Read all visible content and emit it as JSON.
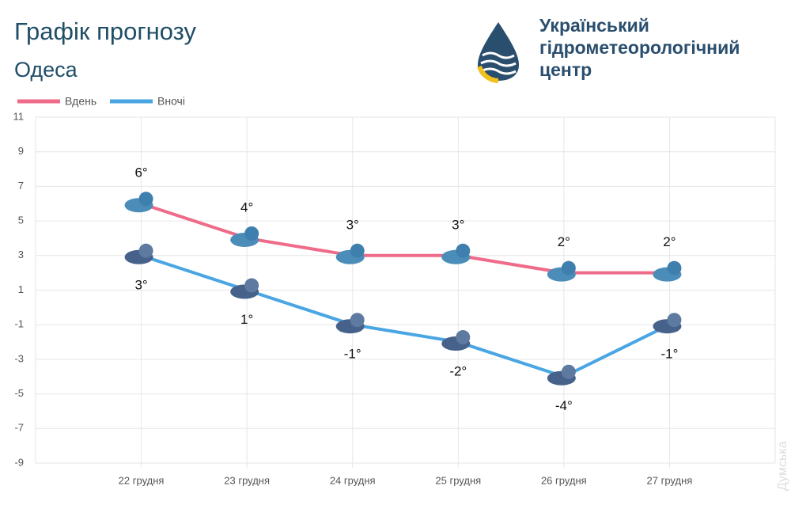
{
  "header": {
    "title": "Графік прогнозу",
    "subtitle": "Одеса",
    "org": [
      "Український",
      "гідрометеорологічний",
      "центр"
    ]
  },
  "watermark": "Думська",
  "chart_data": {
    "type": "line",
    "categories": [
      "22 грудня",
      "23 грудня",
      "24 грудня",
      "25 грудня",
      "26 грудня",
      "27 грудня"
    ],
    "series": [
      {
        "name": "Вдень",
        "color": "#ef6b8a",
        "values": [
          6,
          4,
          3,
          3,
          2,
          2
        ],
        "value_labels": [
          "6°",
          "4°",
          "3°",
          "3°",
          "2°",
          "2°"
        ]
      },
      {
        "name": "Вночі",
        "color": "#4aa5e3",
        "values": [
          3,
          1,
          -1,
          -2,
          -4,
          -1
        ],
        "value_labels": [
          "3°",
          "1°",
          "-1°",
          "-2°",
          "-4°",
          "-1°"
        ]
      }
    ],
    "ylim": [
      -9,
      11
    ],
    "yticks": [
      -9,
      -7,
      -5,
      -3,
      -1,
      1,
      3,
      5,
      7,
      9,
      11
    ],
    "grid": true
  }
}
